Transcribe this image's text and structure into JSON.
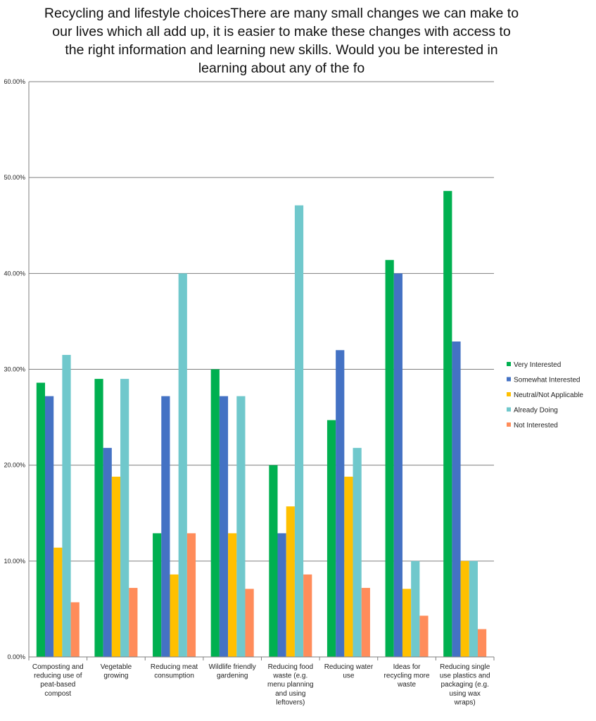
{
  "chart_data": {
    "type": "bar",
    "title": "Recycling and lifestyle choicesThere are many small changes we can make to our lives which all add up, it is easier to make these changes with access to the right information and learning new skills. Would you be interested in learning about any of the fo",
    "ylim": [
      0,
      0.6
    ],
    "yticks": [
      0,
      0.1,
      0.2,
      0.3,
      0.4,
      0.5,
      0.6
    ],
    "ytick_labels": [
      "0.00%",
      "10.00%",
      "20.00%",
      "30.00%",
      "40.00%",
      "50.00%",
      "60.00%"
    ],
    "grid": true,
    "legend_position": "right",
    "categories": [
      [
        "Composting and",
        "reducing use of",
        "peat-based",
        "compost"
      ],
      [
        "Vegetable",
        "growing"
      ],
      [
        "Reducing meat",
        "consumption"
      ],
      [
        "Wildlife friendly",
        "gardening"
      ],
      [
        "Reducing food",
        "waste (e.g.",
        "menu planning",
        "and using",
        "leftovers)"
      ],
      [
        "Reducing water",
        "use"
      ],
      [
        "Ideas for",
        "recycling more",
        "waste"
      ],
      [
        "Reducing single",
        "use plastics and",
        "packaging (e.g.",
        "using wax",
        "wraps)"
      ]
    ],
    "series": [
      {
        "name": "Very Interested",
        "color": "#00b050",
        "values": [
          0.286,
          0.29,
          0.129,
          0.3,
          0.2,
          0.247,
          0.414,
          0.486
        ]
      },
      {
        "name": "Somewhat Interested",
        "color": "#4472c4",
        "values": [
          0.272,
          0.218,
          0.272,
          0.272,
          0.129,
          0.32,
          0.4,
          0.329
        ]
      },
      {
        "name": "Neutral/Not Applicable",
        "color": "#ffc000",
        "values": [
          0.114,
          0.188,
          0.086,
          0.129,
          0.157,
          0.188,
          0.071,
          0.1
        ]
      },
      {
        "name": "Already Doing",
        "color": "#70c8cc",
        "values": [
          0.315,
          0.29,
          0.4,
          0.272,
          0.471,
          0.218,
          0.1,
          0.1
        ]
      },
      {
        "name": "Not Interested",
        "color": "#ff8c5a",
        "values": [
          0.057,
          0.072,
          0.129,
          0.071,
          0.086,
          0.072,
          0.043,
          0.029
        ]
      }
    ]
  }
}
